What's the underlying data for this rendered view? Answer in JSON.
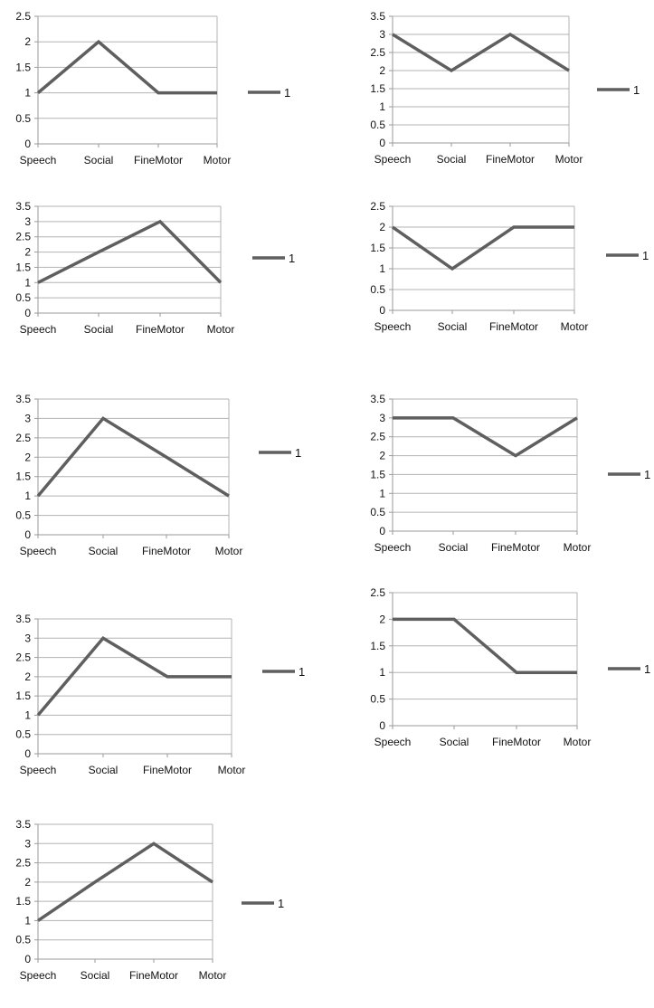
{
  "colors": {
    "line": "#5f5f5f",
    "grid": "#b3b3b3",
    "axis": "#9a9a9a",
    "text": "#111111"
  },
  "chart_data": [
    {
      "type": "line",
      "categories": [
        "Speech",
        "Social",
        "FineMotor",
        "Motor"
      ],
      "series": [
        {
          "name": "1",
          "values": [
            1,
            2,
            1,
            1
          ]
        }
      ],
      "ylim": [
        0,
        2.5
      ],
      "yticks": [
        "0",
        "0.5",
        "1",
        "1.5",
        "2",
        "2.5"
      ],
      "grid": true,
      "legend": "right"
    },
    {
      "type": "line",
      "categories": [
        "Speech",
        "Social",
        "FineMotor",
        "Motor"
      ],
      "series": [
        {
          "name": "1",
          "values": [
            3,
            2,
            3,
            2
          ]
        }
      ],
      "ylim": [
        0,
        3.5
      ],
      "yticks": [
        "0",
        "0.5",
        "1",
        "1.5",
        "2",
        "2.5",
        "3",
        "3.5"
      ],
      "grid": true,
      "legend": "right"
    },
    {
      "type": "line",
      "categories": [
        "Speech",
        "Social",
        "FineMotor",
        "Motor"
      ],
      "series": [
        {
          "name": "1",
          "values": [
            1,
            2,
            3,
            1
          ]
        }
      ],
      "ylim": [
        0,
        3.5
      ],
      "yticks": [
        "0",
        "0.5",
        "1",
        "1.5",
        "2",
        "2.5",
        "3",
        "3.5"
      ],
      "grid": true,
      "legend": "right"
    },
    {
      "type": "line",
      "categories": [
        "Speech",
        "Social",
        "FineMotor",
        "Motor"
      ],
      "series": [
        {
          "name": "1",
          "values": [
            2,
            1,
            2,
            2
          ]
        }
      ],
      "ylim": [
        0,
        2.5
      ],
      "yticks": [
        "0",
        "0.5",
        "1",
        "1.5",
        "2",
        "2.5"
      ],
      "grid": true,
      "legend": "right"
    },
    {
      "type": "line",
      "categories": [
        "Speech",
        "Social",
        "FineMotor",
        "Motor"
      ],
      "series": [
        {
          "name": "1",
          "values": [
            1,
            3,
            2,
            1
          ]
        }
      ],
      "ylim": [
        0,
        3.5
      ],
      "yticks": [
        "0",
        "0.5",
        "1",
        "1.5",
        "2",
        "2.5",
        "3",
        "3.5"
      ],
      "grid": true,
      "legend": "right"
    },
    {
      "type": "line",
      "categories": [
        "Speech",
        "Social",
        "FineMotor",
        "Motor"
      ],
      "series": [
        {
          "name": "1",
          "values": [
            3,
            3,
            2,
            3
          ]
        }
      ],
      "ylim": [
        0,
        3.5
      ],
      "yticks": [
        "0",
        "0.5",
        "1",
        "1.5",
        "2",
        "2.5",
        "3",
        "3.5"
      ],
      "grid": true,
      "legend": "right"
    },
    {
      "type": "line",
      "categories": [
        "Speech",
        "Social",
        "FineMotor",
        "Motor"
      ],
      "series": [
        {
          "name": "1",
          "values": [
            1,
            3,
            2,
            2
          ]
        }
      ],
      "ylim": [
        0,
        3.5
      ],
      "yticks": [
        "0",
        "0.5",
        "1",
        "1.5",
        "2",
        "2.5",
        "3",
        "3.5"
      ],
      "grid": true,
      "legend": "right"
    },
    {
      "type": "line",
      "categories": [
        "Speech",
        "Social",
        "FineMotor",
        "Motor"
      ],
      "series": [
        {
          "name": "1",
          "values": [
            2,
            2,
            1,
            1
          ]
        }
      ],
      "ylim": [
        0,
        2.5
      ],
      "yticks": [
        "0",
        "0.5",
        "1",
        "1.5",
        "2",
        "2.5"
      ],
      "grid": true,
      "legend": "right"
    },
    {
      "type": "line",
      "categories": [
        "Speech",
        "Social",
        "FineMotor",
        "Motor"
      ],
      "series": [
        {
          "name": "1",
          "values": [
            1,
            2,
            3,
            2
          ]
        }
      ],
      "ylim": [
        0,
        3.5
      ],
      "yticks": [
        "0",
        "0.5",
        "1",
        "1.5",
        "2",
        "2.5",
        "3",
        "3.5"
      ],
      "grid": true,
      "legend": "right"
    }
  ]
}
